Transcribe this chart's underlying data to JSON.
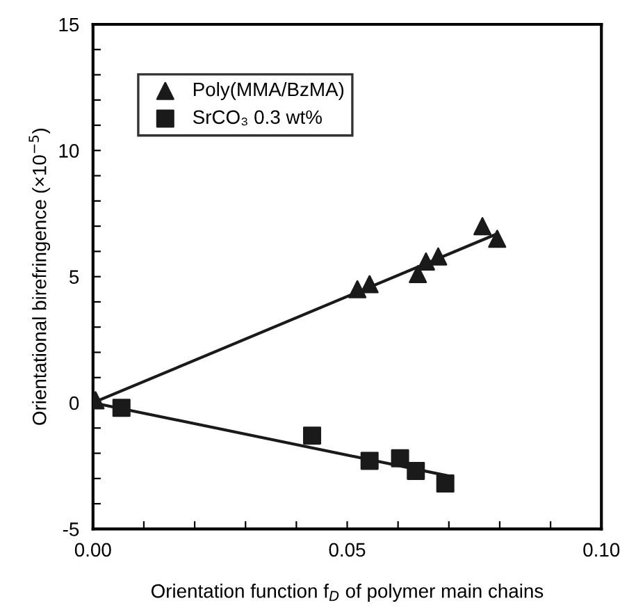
{
  "chart_data": {
    "type": "scatter",
    "xlabel": "Orientation function f$_{D}$ of polymer main chains",
    "ylabel": "Orientational birefringence (×10$^{−5}$)",
    "xlim": [
      0,
      0.1
    ],
    "ylim": [
      -5,
      15
    ],
    "xticks": [
      {
        "value": 0,
        "label": "0.00"
      },
      {
        "value": 0.01,
        "label": null
      },
      {
        "value": 0.02,
        "label": null
      },
      {
        "value": 0.03,
        "label": null
      },
      {
        "value": 0.04,
        "label": null
      },
      {
        "value": 0.05,
        "label": "0.05"
      },
      {
        "value": 0.06,
        "label": null
      },
      {
        "value": 0.07,
        "label": null
      },
      {
        "value": 0.08,
        "label": null
      },
      {
        "value": 0.09,
        "label": null
      },
      {
        "value": 0.1,
        "label": "0.10"
      }
    ],
    "yticks": [
      {
        "value": -5,
        "label": "-5"
      },
      {
        "value": -4,
        "label": null
      },
      {
        "value": -3,
        "label": null
      },
      {
        "value": -2,
        "label": null
      },
      {
        "value": -1,
        "label": null
      },
      0,
      {
        "value": 1,
        "label": null
      },
      {
        "value": 2,
        "label": null
      },
      {
        "value": 3,
        "label": null
      },
      {
        "value": 4,
        "label": null
      },
      5,
      {
        "value": 6,
        "label": null
      },
      {
        "value": 7,
        "label": null
      },
      {
        "value": 8,
        "label": null
      },
      {
        "value": 9,
        "label": null
      },
      10,
      {
        "value": 11,
        "label": null
      },
      {
        "value": 12,
        "label": null
      },
      {
        "value": 13,
        "label": null
      },
      {
        "value": 14,
        "label": null
      },
      15
    ],
    "grid": false,
    "legend": "top left",
    "series": [
      {
        "name": "Poly(MMA/BzMA)",
        "marker": "triangle",
        "color": "#1a1a1a",
        "x": [
          0.0005,
          0.052,
          0.0544,
          0.0639,
          0.0655,
          0.0679,
          0.0766,
          0.0795
        ],
        "values": [
          0.1,
          4.5,
          4.7,
          5.1,
          5.6,
          5.8,
          7.0,
          6.5
        ]
      },
      {
        "name": "SrCO₃ 0.3 wt%",
        "marker": "square",
        "color": "#1a1a1a",
        "x": [
          0.0056,
          0.0431,
          0.0544,
          0.0604,
          0.0635,
          0.0693
        ],
        "values": [
          -0.2,
          -1.3,
          -2.3,
          -2.2,
          -2.7,
          -3.2
        ]
      },
      {
        "type": "line",
        "color": "#1a1a1a",
        "line_style": "solid",
        "marker": "none",
        "x": [
          0,
          0.0795
        ],
        "values": [
          0,
          6.7
        ]
      },
      {
        "type": "line",
        "color": "#1a1a1a",
        "line_style": "solid",
        "marker": "none",
        "x": [
          0,
          0.07
        ],
        "values": [
          0,
          -2.9
        ]
      }
    ]
  }
}
